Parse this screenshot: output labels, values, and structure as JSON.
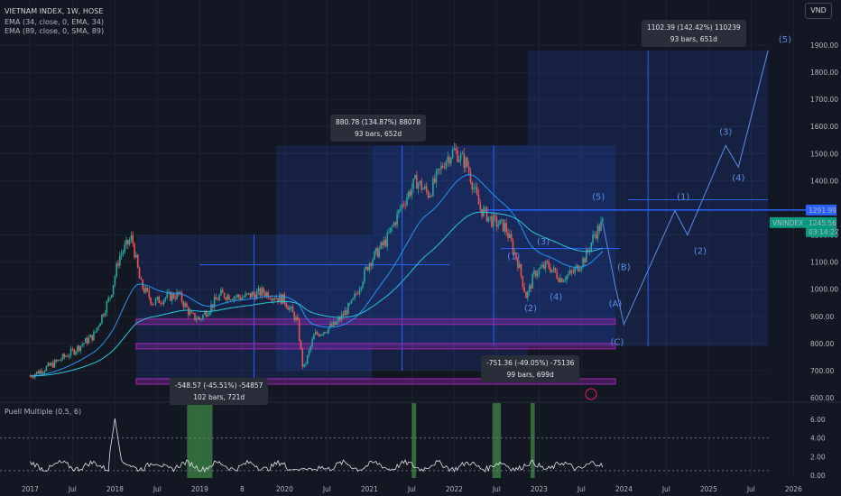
{
  "header": {
    "symbol_title": "VIETNAM INDEX, 1W, HOSE",
    "ema1": "EMA (34, close, 0, EMA, 34)",
    "ema2": "EMA (89, close, 0, SMA, 89)",
    "currency": "VND",
    "indicator": "Puell Multiple (0.5, 6)"
  },
  "labels": {
    "price_tag": "1291.99",
    "ticker_tag": "VNINDEX",
    "last_price": "1245.56",
    "countdown": "03:14:27"
  },
  "measures": [
    {
      "line1": "-548.57 (-45.51%) -54857",
      "line2": "102 bars, 721d"
    },
    {
      "line1": "880.78 (134.87%) 88078",
      "line2": "93 bars, 652d"
    },
    {
      "line1": "-751.36 (-49.05%) -75136",
      "line2": "99 bars, 699d"
    },
    {
      "line1": "1102.39 (142.42%) 110239",
      "line2": "93 bars, 651d"
    }
  ],
  "waves": [
    "(1)",
    "(2)",
    "(3)",
    "(4)",
    "(5)",
    "(A)",
    "(B)",
    "(C)",
    "(1)",
    "(2)",
    "(3)",
    "(4)",
    "(5)"
  ],
  "colors": {
    "bg": "#131722",
    "up": "#26a69a",
    "down": "#ef5350",
    "drawing": "#2962ff",
    "zone": "#9c27b0",
    "ema": "#2196f3"
  },
  "chart_data": {
    "type": "candlestick",
    "xlabels": [
      "2017",
      "Jul",
      "2018",
      "Jul",
      "2019",
      "8",
      "2020",
      "Jul",
      "2021",
      "Jul",
      "2022",
      "Jul",
      "2023",
      "Jul",
      "2024",
      "Jul",
      "2025",
      "Jul",
      "2026"
    ],
    "price_ticks": [
      "1900.00",
      "1800.00",
      "1700.00",
      "1600.00",
      "1500.00",
      "1400.00",
      "1291.99",
      "1200.00",
      "1100.00",
      "1000.00",
      "900.00",
      "800.00",
      "700.00",
      "600.00"
    ],
    "osc_ticks": [
      "6.00",
      "4.00",
      "2.00",
      "0.00"
    ],
    "ylim": [
      600,
      1950
    ],
    "close_path": [
      [
        2017.0,
        680
      ],
      [
        2017.25,
        720
      ],
      [
        2017.5,
        770
      ],
      [
        2017.75,
        830
      ],
      [
        2017.95,
        980
      ],
      [
        2018.05,
        1120
      ],
      [
        2018.2,
        1190
      ],
      [
        2018.3,
        1020
      ],
      [
        2018.45,
        950
      ],
      [
        2018.6,
        970
      ],
      [
        2018.75,
        980
      ],
      [
        2018.9,
        900
      ],
      [
        2019.0,
        890
      ],
      [
        2019.25,
        980
      ],
      [
        2019.5,
        970
      ],
      [
        2019.75,
        990
      ],
      [
        2020.0,
        960
      ],
      [
        2020.15,
        880
      ],
      [
        2020.22,
        700
      ],
      [
        2020.35,
        830
      ],
      [
        2020.6,
        870
      ],
      [
        2020.8,
        950
      ],
      [
        2021.0,
        1100
      ],
      [
        2021.2,
        1180
      ],
      [
        2021.4,
        1320
      ],
      [
        2021.55,
        1400
      ],
      [
        2021.7,
        1350
      ],
      [
        2021.9,
        1480
      ],
      [
        2022.0,
        1510
      ],
      [
        2022.15,
        1460
      ],
      [
        2022.3,
        1300
      ],
      [
        2022.45,
        1250
      ],
      [
        2022.6,
        1230
      ],
      [
        2022.75,
        1100
      ],
      [
        2022.85,
        970
      ],
      [
        2022.95,
        1060
      ],
      [
        2023.1,
        1090
      ],
      [
        2023.25,
        1040
      ],
      [
        2023.4,
        1060
      ],
      [
        2023.55,
        1120
      ],
      [
        2023.65,
        1200
      ],
      [
        2023.75,
        1245
      ]
    ],
    "projection": [
      [
        2023.75,
        1245
      ],
      [
        2023.9,
        1010
      ],
      [
        2024.0,
        870
      ],
      [
        2024.6,
        1290
      ],
      [
        2024.75,
        1200
      ],
      [
        2025.2,
        1530
      ],
      [
        2025.35,
        1450
      ],
      [
        2025.7,
        1880
      ]
    ],
    "osc_spikes": [
      [
        2018.0,
        6.1
      ]
    ],
    "highlight_bands": [
      [
        2018.85,
        2019.15
      ],
      [
        2021.5,
        2021.55
      ],
      [
        2022.45,
        2022.55
      ],
      [
        2022.9,
        2022.95
      ]
    ]
  }
}
